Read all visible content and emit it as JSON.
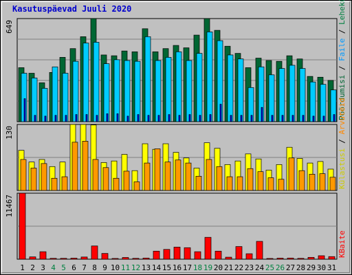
{
  "chart_data": {
    "type": "bar",
    "title": "Kasutuspäevad Juuli 2020",
    "colors": {
      "background": "#c0c0c0",
      "grid": "#808080",
      "title": "#0000cc",
      "visits": "#006633",
      "files": "#00ccff",
      "files_label": "#0099ff",
      "hits": "#ffff00",
      "hits_label": "#cccc00",
      "sites": "#ff9900",
      "sites_label": "#ff8800",
      "kbytes": "#ff0000",
      "weekday": "#000000",
      "weekend": "#008040",
      "axis_text": "#000000"
    },
    "categories": [
      "1",
      "2",
      "3",
      "4",
      "5",
      "6",
      "7",
      "8",
      "9",
      "10",
      "11",
      "12",
      "13",
      "14",
      "15",
      "16",
      "17",
      "18",
      "19",
      "20",
      "21",
      "22",
      "23",
      "24",
      "25",
      "26",
      "27",
      "28",
      "29",
      "30",
      "31"
    ],
    "weekend_days": [
      "4",
      "5",
      "11",
      "12",
      "18",
      "19",
      "25",
      "26"
    ],
    "panels": [
      {
        "id": "hits",
        "max_label": "649",
        "ylim": [
          0,
          649
        ],
        "legend": [
          "Pöördumisi",
          "Faile",
          "Lehekülgi"
        ],
        "series": [
          {
            "name": "Pöördumisi",
            "values": [
              340,
              305,
              245,
              310,
              405,
              460,
              535,
              649,
              420,
              415,
              445,
              440,
              585,
              440,
              460,
              480,
              465,
              545,
              649,
              575,
              475,
              430,
              340,
              400,
              385,
              380,
              415,
              395,
              285,
              280,
              260
            ]
          },
          {
            "name": "Faile",
            "values": [
              305,
              275,
              210,
              345,
              305,
              380,
              495,
              500,
              365,
              390,
              385,
              380,
              535,
              385,
              405,
              440,
              385,
              430,
              565,
              510,
              420,
              395,
              215,
              345,
              295,
              335,
              355,
              335,
              250,
              235,
              200
            ]
          },
          {
            "name": "Lehekülgi",
            "values": [
              145,
              40,
              35,
              40,
              40,
              45,
              45,
              40,
              50,
              50,
              35,
              45,
              40,
              40,
              45,
              40,
              45,
              40,
              45,
              110,
              40,
              40,
              40,
              90,
              40,
              40,
              40,
              40,
              35,
              35,
              45
            ]
          }
        ]
      },
      {
        "id": "sites",
        "max_label": "130",
        "ylim": [
          0,
          130
        ],
        "legend": [
          "Külastusi",
          "Arvuteid"
        ],
        "series": [
          {
            "name": "Külastusi",
            "values": [
              79,
              56,
              61,
              47,
              56,
              130,
              130,
              129,
              55,
              58,
              71,
              39,
              92,
              81,
              92,
              75,
              64,
              44,
              94,
              83,
              51,
              58,
              72,
              62,
              40,
              51,
              85,
              63,
              54,
              57,
              42
            ]
          },
          {
            "name": "Arvuteid",
            "values": [
              61,
              44,
              53,
              24,
              27,
              95,
              97,
              61,
              45,
              24,
              38,
              17,
              54,
              82,
              56,
              60,
              54,
              28,
              61,
              47,
              27,
              27,
              43,
              37,
              25,
              22,
              64,
              39,
              32,
              33,
              26
            ]
          }
        ]
      },
      {
        "id": "kbytes",
        "max_label": "11467",
        "ylim": [
          0,
          11467
        ],
        "legend": [
          "KBaite"
        ],
        "series": [
          {
            "name": "KBaite",
            "values": [
              11467,
              400,
              1300,
              150,
              150,
              180,
              380,
              2300,
              1000,
              130,
              300,
              150,
              200,
              1400,
              1700,
              2100,
              2000,
              1300,
              3800,
              1400,
              350,
              2200,
              950,
              3100,
              130,
              180,
              200,
              150,
              320,
              600,
              450
            ]
          }
        ]
      }
    ]
  }
}
